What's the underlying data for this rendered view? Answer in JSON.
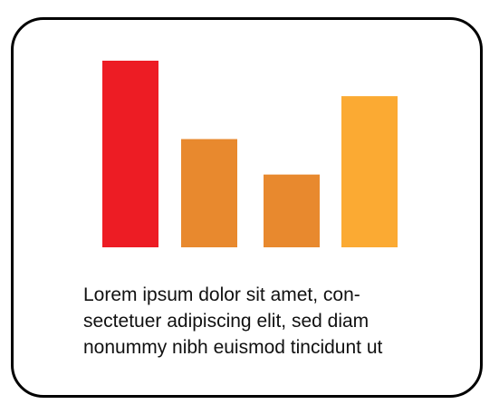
{
  "chart_data": {
    "type": "bar",
    "categories": [
      "",
      "",
      "",
      ""
    ],
    "values": [
      100,
      58,
      39,
      81
    ],
    "ylim": [
      0,
      100
    ],
    "grid": false,
    "colors": [
      "#ED1C24",
      "#E8892E",
      "#E8892E",
      "#FBAA33"
    ]
  },
  "caption": {
    "lines": [
      "Lorem ipsum dolor sit amet, con-",
      "sectetuer adipiscing elit, sed diam",
      "nonummy nibh euismod tincidunt ut"
    ]
  }
}
